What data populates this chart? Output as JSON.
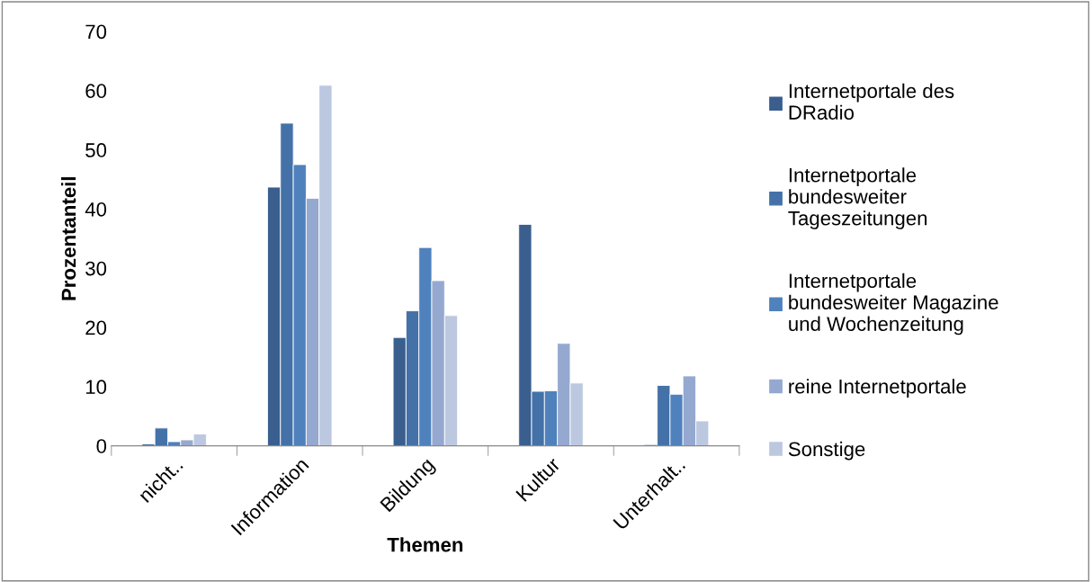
{
  "chart_data": {
    "type": "bar",
    "xlabel": "Themen",
    "ylabel": "Prozentanteil",
    "categories": [
      "nicht..",
      "Information",
      "Bildung",
      "Kultur",
      "Unterhalt.."
    ],
    "series": [
      {
        "name": "Internetportale des DRadio",
        "color": "#3a5f8f",
        "values": [
          0.3,
          43.7,
          18.3,
          37.4,
          0.2
        ]
      },
      {
        "name": "Internetportale bundesweiter Tageszeitungen",
        "color": "#4472a8",
        "values": [
          3.0,
          54.5,
          22.8,
          9.2,
          10.2
        ]
      },
      {
        "name": "Internetportale bundesweiter Magazine und Wochenzeitung",
        "color": "#4f81bd",
        "values": [
          0.7,
          47.5,
          33.5,
          9.3,
          8.7
        ]
      },
      {
        "name": "reine Internetportale",
        "color": "#95a9d0",
        "values": [
          1.0,
          41.8,
          27.9,
          17.3,
          11.8
        ]
      },
      {
        "name": "Sonstige",
        "color": "#bcc8e0",
        "values": [
          2.0,
          60.9,
          22.0,
          10.6,
          4.2
        ]
      }
    ],
    "ylim": [
      0,
      70
    ],
    "yticks": [
      0,
      10,
      20,
      30,
      40,
      50,
      60,
      70
    ],
    "grid": false,
    "legend": "right"
  }
}
